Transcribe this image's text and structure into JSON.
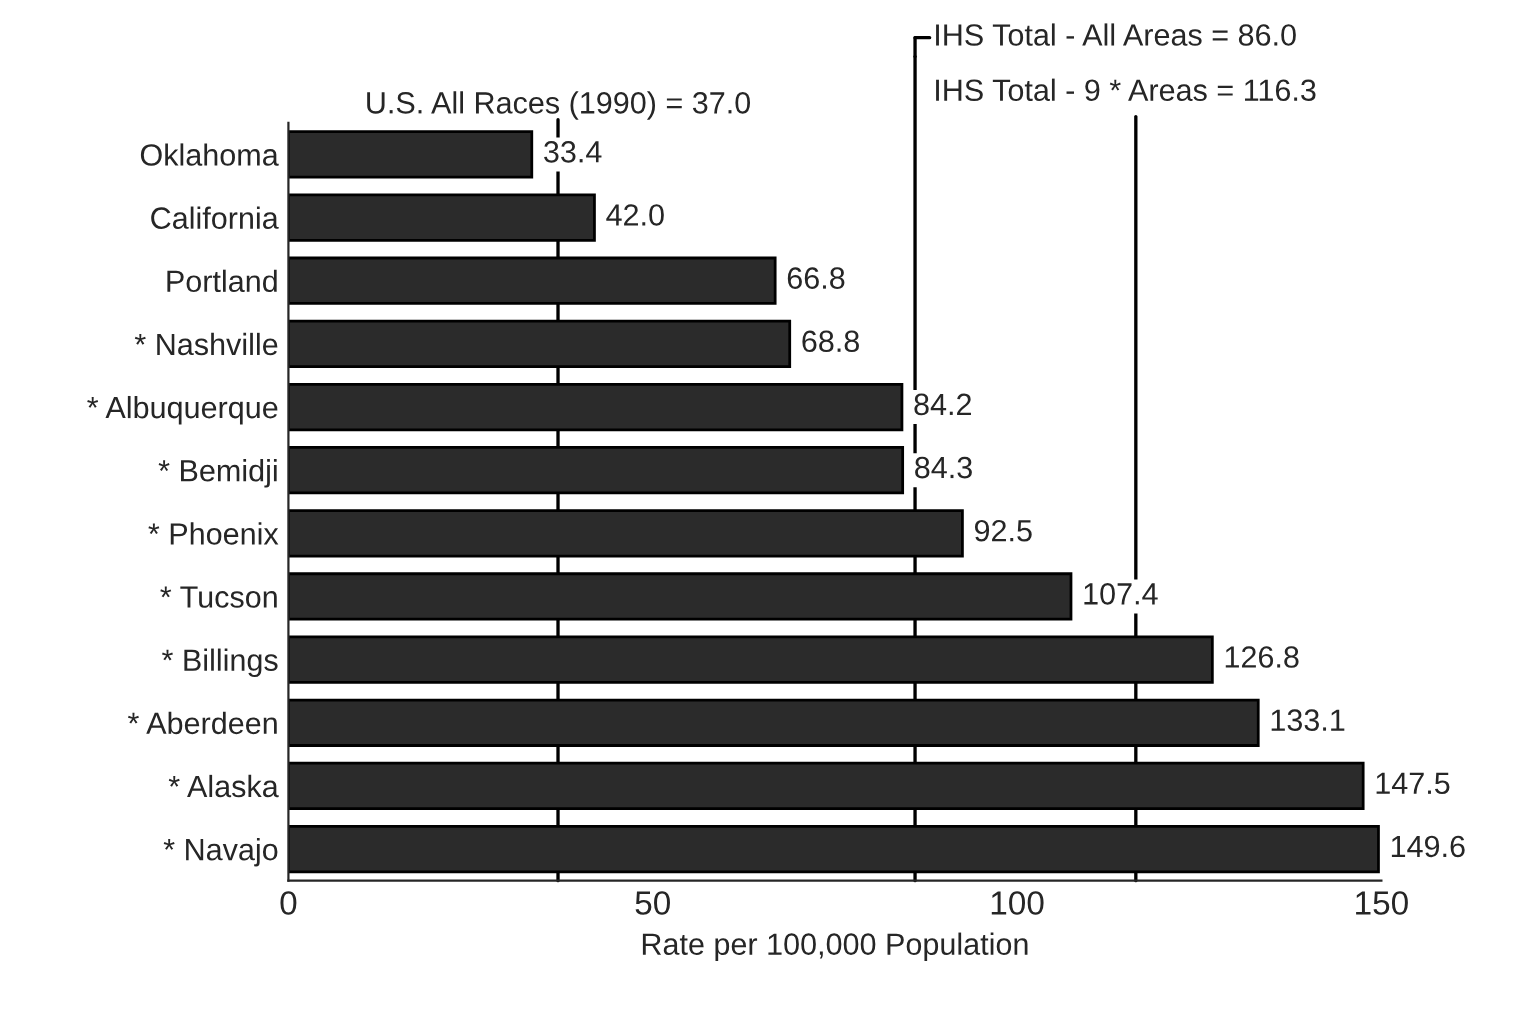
{
  "chart_data": {
    "type": "bar",
    "orientation": "horizontal",
    "categories": [
      "Oklahoma",
      "California",
      "Portland",
      "* Nashville",
      "* Albuquerque",
      "* Bemidji",
      "* Phoenix",
      "* Tucson",
      "* Billings",
      "* Aberdeen",
      "* Alaska",
      "* Navajo"
    ],
    "values": [
      33.4,
      42.0,
      66.8,
      68.8,
      84.2,
      84.3,
      92.5,
      107.4,
      126.8,
      133.1,
      147.5,
      149.6
    ],
    "color": "#2b2b2b",
    "value_labels": [
      "33.4",
      "42.0",
      "66.8",
      "68.8",
      "84.2",
      "84.3",
      "92.5",
      "107.4",
      "126.8",
      "133.1",
      "147.5",
      "149.6"
    ],
    "xlabel": "Rate per 100,000 Population",
    "xlim": [
      0,
      150
    ],
    "xticks": [
      0,
      50,
      100,
      150
    ],
    "grid": false,
    "ref_lines": [
      {
        "axis": "x",
        "value": 37.0,
        "label": "U.S. All Races (1990) = 37.0",
        "color": "#000000"
      },
      {
        "axis": "x",
        "value": 86.0,
        "label": "IHS Total - All Areas = 86.0",
        "color": "#000000"
      },
      {
        "axis": "x",
        "value": 116.3,
        "label": "IHS Total - 9 * Areas = 116.3",
        "color": "#000000"
      }
    ]
  }
}
